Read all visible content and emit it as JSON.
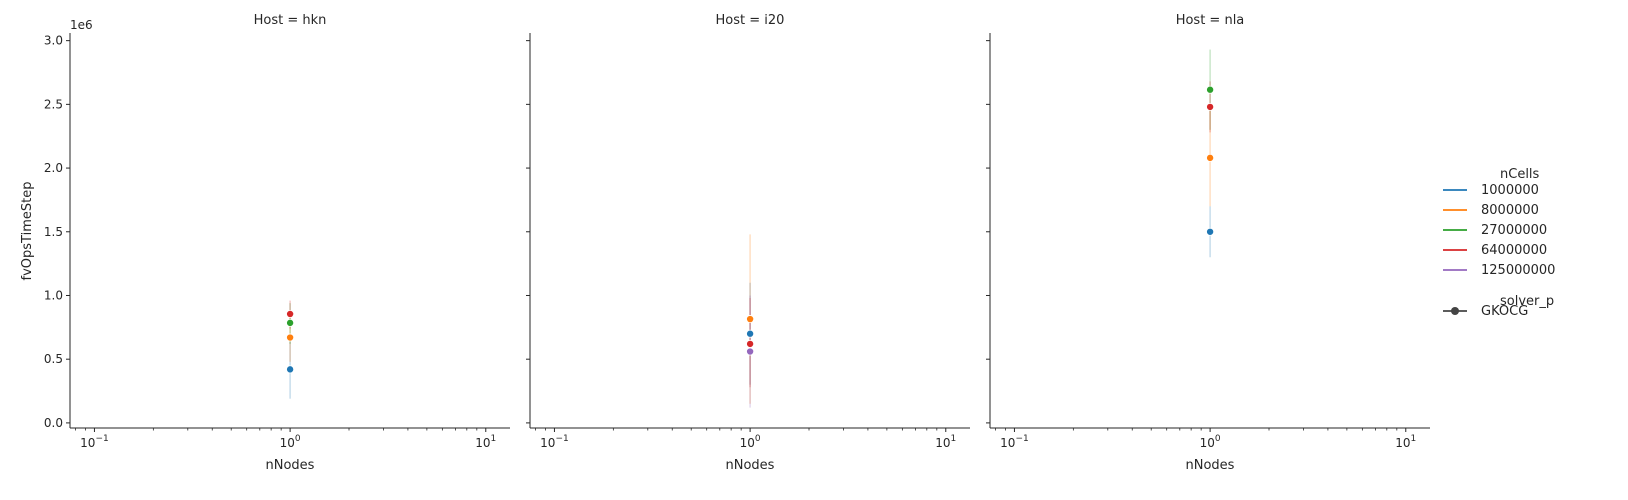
{
  "chart_data": {
    "type": "scatter",
    "y_offset_label": "1e6",
    "xlabel": "nNodes",
    "ylabel": "fvOpsTimeStep",
    "x_scale": "log",
    "xlim": [
      0.075,
      13.3
    ],
    "ylim": [
      -40000,
      3060000
    ],
    "x_ticks": [
      {
        "value": 0.1,
        "base": "10",
        "exp": "−1"
      },
      {
        "value": 1,
        "base": "10",
        "exp": "0"
      },
      {
        "value": 10,
        "base": "10",
        "exp": "1"
      }
    ],
    "y_ticks": [
      {
        "value": 0,
        "label": "0.0"
      },
      {
        "value": 500000,
        "label": "0.5"
      },
      {
        "value": 1000000,
        "label": "1.0"
      },
      {
        "value": 1500000,
        "label": "1.5"
      },
      {
        "value": 2000000,
        "label": "2.0"
      },
      {
        "value": 2500000,
        "label": "2.5"
      },
      {
        "value": 3000000,
        "label": "3.0"
      }
    ],
    "legend": {
      "title": "nCells",
      "entries": [
        {
          "name": "1000000",
          "color": "#1f77b4"
        },
        {
          "name": "8000000",
          "color": "#ff7f0e"
        },
        {
          "name": "27000000",
          "color": "#2ca02c"
        },
        {
          "name": "64000000",
          "color": "#d62728"
        },
        {
          "name": "125000000",
          "color": "#9467bd"
        }
      ],
      "style_title": "solver_p",
      "style_entries": [
        {
          "name": "GKOCG",
          "marker": "circle",
          "color": "#444444"
        }
      ],
      "placement": "right"
    },
    "facets": [
      {
        "title": "Host = hkn",
        "points": [
          {
            "series": "1000000",
            "x": 1,
            "y": 420000,
            "ci": [
              190000,
              640000
            ]
          },
          {
            "series": "8000000",
            "x": 1,
            "y": 670000,
            "ci": [
              480000,
              870000
            ]
          },
          {
            "series": "27000000",
            "x": 1,
            "y": 785000,
            "ci": [
              620000,
              940000
            ]
          },
          {
            "series": "64000000",
            "x": 1,
            "y": 855000,
            "ci": [
              740000,
              960000
            ]
          }
        ]
      },
      {
        "title": "Host = i20",
        "points": [
          {
            "series": "1000000",
            "x": 1,
            "y": 700000,
            "ci": [
              300000,
              1100000
            ]
          },
          {
            "series": "8000000",
            "x": 1,
            "y": 815000,
            "ci": [
              150000,
              1480000
            ]
          },
          {
            "series": "64000000",
            "x": 1,
            "y": 620000,
            "ci": [
              280000,
              980000
            ]
          },
          {
            "series": "125000000",
            "x": 1,
            "y": 560000,
            "ci": [
              120000,
              1000000
            ]
          }
        ]
      },
      {
        "title": "Host = nla",
        "points": [
          {
            "series": "1000000",
            "x": 1,
            "y": 1500000,
            "ci": [
              1300000,
              1700000
            ]
          },
          {
            "series": "8000000",
            "x": 1,
            "y": 2080000,
            "ci": [
              1700000,
              2460000
            ]
          },
          {
            "series": "27000000",
            "x": 1,
            "y": 2615000,
            "ci": [
              2300000,
              2930000
            ]
          },
          {
            "series": "64000000",
            "x": 1,
            "y": 2480000,
            "ci": [
              2280000,
              2680000
            ]
          }
        ]
      }
    ]
  }
}
